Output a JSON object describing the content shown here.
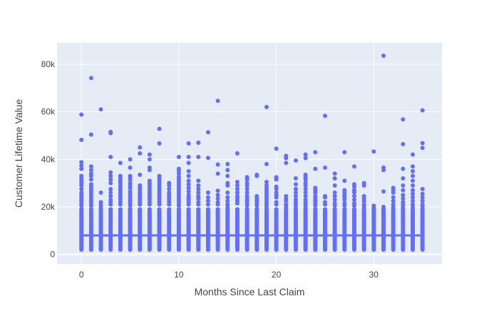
{
  "chart_data": {
    "type": "scatter",
    "xlabel": "Months Since Last Claim",
    "ylabel": "Customer Lifetime Value",
    "xlim": [
      -2.5,
      37
    ],
    "ylim": [
      -4000,
      89000
    ],
    "x_ticks": [
      0,
      10,
      20,
      30
    ],
    "x_tick_labels": [
      "0",
      "10",
      "20",
      "30"
    ],
    "y_ticks": [
      0,
      20000,
      40000,
      60000,
      80000
    ],
    "y_tick_labels": [
      "0",
      "20k",
      "40k",
      "60k",
      "80k"
    ],
    "grid": true,
    "legend": "none",
    "colors": {
      "marker": "#636efa",
      "plot_bg": "#e5ecf6",
      "grid": "#ffffff",
      "trend": "#636efa"
    },
    "dense_band": {
      "from": 2000,
      "to": 19000,
      "step": 500
    },
    "trend_line": {
      "x": [
        0,
        35
      ],
      "y": [
        8000,
        8000
      ]
    },
    "outliers": [
      {
        "x": 0,
        "y": [
          58800,
          48200,
          38800,
          37400,
          36000,
          33000,
          32000,
          31000,
          30000,
          29000,
          27500,
          26000,
          25000,
          24500,
          23500,
          22500,
          21500,
          20500
        ]
      },
      {
        "x": 1,
        "y": [
          74200,
          50400,
          37000,
          35500,
          34000,
          33000,
          31500,
          29500,
          28500,
          27500,
          26500,
          25500,
          24500,
          23500,
          22500,
          21500,
          20500
        ]
      },
      {
        "x": 2,
        "y": [
          61000,
          26000,
          22000,
          21000,
          20000
        ]
      },
      {
        "x": 3,
        "y": [
          51500,
          51000,
          41000,
          34500,
          33000,
          31500,
          30000,
          27500,
          26000,
          24500,
          23000,
          22000,
          21000
        ]
      },
      {
        "x": 4,
        "y": [
          38500,
          33000,
          32000,
          31000,
          30000,
          29000,
          28000,
          27000,
          26000,
          25000,
          24000,
          23000,
          22000,
          21000
        ]
      },
      {
        "x": 5,
        "y": [
          40000,
          36500,
          33000,
          32500,
          31500,
          30000,
          29000,
          28000,
          26500,
          25500,
          24500,
          23500,
          22500,
          21500,
          20500
        ]
      },
      {
        "x": 6,
        "y": [
          45000,
          42500,
          33500,
          29000,
          28000,
          27000,
          26000,
          25000,
          24000,
          23000,
          22000,
          21000
        ]
      },
      {
        "x": 7,
        "y": [
          42000,
          40000,
          36500,
          35500,
          31000,
          30000,
          29000,
          28000,
          27000,
          26000,
          25000,
          24000,
          23000,
          22000,
          21000
        ]
      },
      {
        "x": 8,
        "y": [
          52800,
          46700,
          33000,
          32000,
          31000,
          30000,
          29000,
          28000,
          27000,
          26000,
          25000,
          24000,
          23000,
          22000,
          21000
        ]
      },
      {
        "x": 9,
        "y": [
          30000,
          29000,
          27500,
          26000,
          25000,
          24000,
          23000,
          22000,
          21000
        ]
      },
      {
        "x": 10,
        "y": [
          41000,
          36000,
          35000,
          34000,
          32500,
          31500,
          30500,
          29500,
          28500,
          27500,
          26500,
          25500,
          24500,
          23500,
          22500,
          21500,
          20500
        ]
      },
      {
        "x": 11,
        "y": [
          46700,
          41000,
          38500,
          35000,
          33000,
          31000,
          29500,
          28000,
          26500,
          25000,
          24000,
          23000,
          22000,
          21000
        ]
      },
      {
        "x": 12,
        "y": [
          47000,
          41000,
          31000,
          29000,
          27500,
          26000,
          24500,
          23500,
          22000,
          21000
        ]
      },
      {
        "x": 13,
        "y": [
          51400,
          40600,
          26000,
          24000,
          22500,
          21000
        ]
      },
      {
        "x": 14,
        "y": [
          64600,
          37800,
          34000,
          26800,
          25000,
          23500,
          22000,
          21000
        ]
      },
      {
        "x": 15,
        "y": [
          38000,
          35500,
          33000,
          30000,
          29000,
          26000,
          24000,
          22500,
          21000,
          20000
        ]
      },
      {
        "x": 16,
        "y": [
          42500,
          30500,
          29000,
          27500,
          26000,
          24500,
          23500,
          22500,
          21500
        ]
      },
      {
        "x": 17,
        "y": [
          32500,
          31500,
          30000,
          29000,
          27500,
          26000,
          24500,
          23500,
          22500,
          21500,
          20500
        ]
      },
      {
        "x": 18,
        "y": [
          33500,
          33000,
          24500,
          23500,
          22500,
          21500,
          20500
        ]
      },
      {
        "x": 19,
        "y": [
          62000,
          38000,
          30500,
          29000,
          28000,
          27000,
          26000,
          25000,
          24000,
          23000,
          22000,
          21000,
          20000
        ]
      },
      {
        "x": 20,
        "y": [
          44500,
          32500,
          32000,
          31500,
          28500,
          27500,
          26000,
          25000,
          24000,
          22000,
          21000
        ]
      },
      {
        "x": 21,
        "y": [
          41500,
          40500,
          38500,
          24500,
          23500,
          22500,
          21000,
          20000
        ]
      },
      {
        "x": 22,
        "y": [
          39500,
          32000,
          29500,
          27500,
          26000,
          24500,
          23000,
          22000,
          21000,
          20000
        ]
      },
      {
        "x": 23,
        "y": [
          42000,
          40500,
          33500,
          32500,
          31500,
          30000,
          29000,
          27500,
          26000,
          24500,
          23000,
          22000,
          21000,
          20000
        ]
      },
      {
        "x": 24,
        "y": [
          43000,
          36000,
          28000,
          27000,
          26000,
          24500,
          23500,
          22500,
          21500,
          20500
        ]
      },
      {
        "x": 25,
        "y": [
          58300,
          36500,
          24500,
          24000,
          22000,
          21000
        ]
      },
      {
        "x": 26,
        "y": [
          34000,
          32000,
          29000,
          26000,
          24500,
          23000,
          21500,
          20500
        ]
      },
      {
        "x": 27,
        "y": [
          43000,
          31000,
          27000,
          26000,
          25000,
          24000,
          23000,
          21500,
          20500
        ]
      },
      {
        "x": 28,
        "y": [
          37000,
          29500,
          28500,
          27000,
          26000,
          24500,
          23000,
          21500,
          20500
        ]
      },
      {
        "x": 29,
        "y": [
          30000,
          29000,
          24500,
          23500,
          22500,
          21000,
          20000
        ]
      },
      {
        "x": 30,
        "y": [
          43300,
          20500,
          19500
        ]
      },
      {
        "x": 31,
        "y": [
          83600,
          36500,
          35500,
          26500,
          20000
        ]
      },
      {
        "x": 32,
        "y": [
          28000,
          27000,
          26000,
          24000,
          22500,
          21000,
          20000
        ]
      },
      {
        "x": 33,
        "y": [
          56800,
          46400,
          36000,
          32000,
          29000,
          27000,
          25000,
          23500,
          22000,
          21000,
          20000
        ]
      },
      {
        "x": 34,
        "y": [
          42000,
          37000,
          35000,
          33000,
          31000,
          29000,
          27000,
          25500,
          24000,
          22500,
          21000,
          20000
        ]
      },
      {
        "x": 35,
        "y": [
          60600,
          46800,
          44800,
          27500,
          25500,
          24000,
          22500,
          21000,
          20000
        ]
      }
    ]
  }
}
